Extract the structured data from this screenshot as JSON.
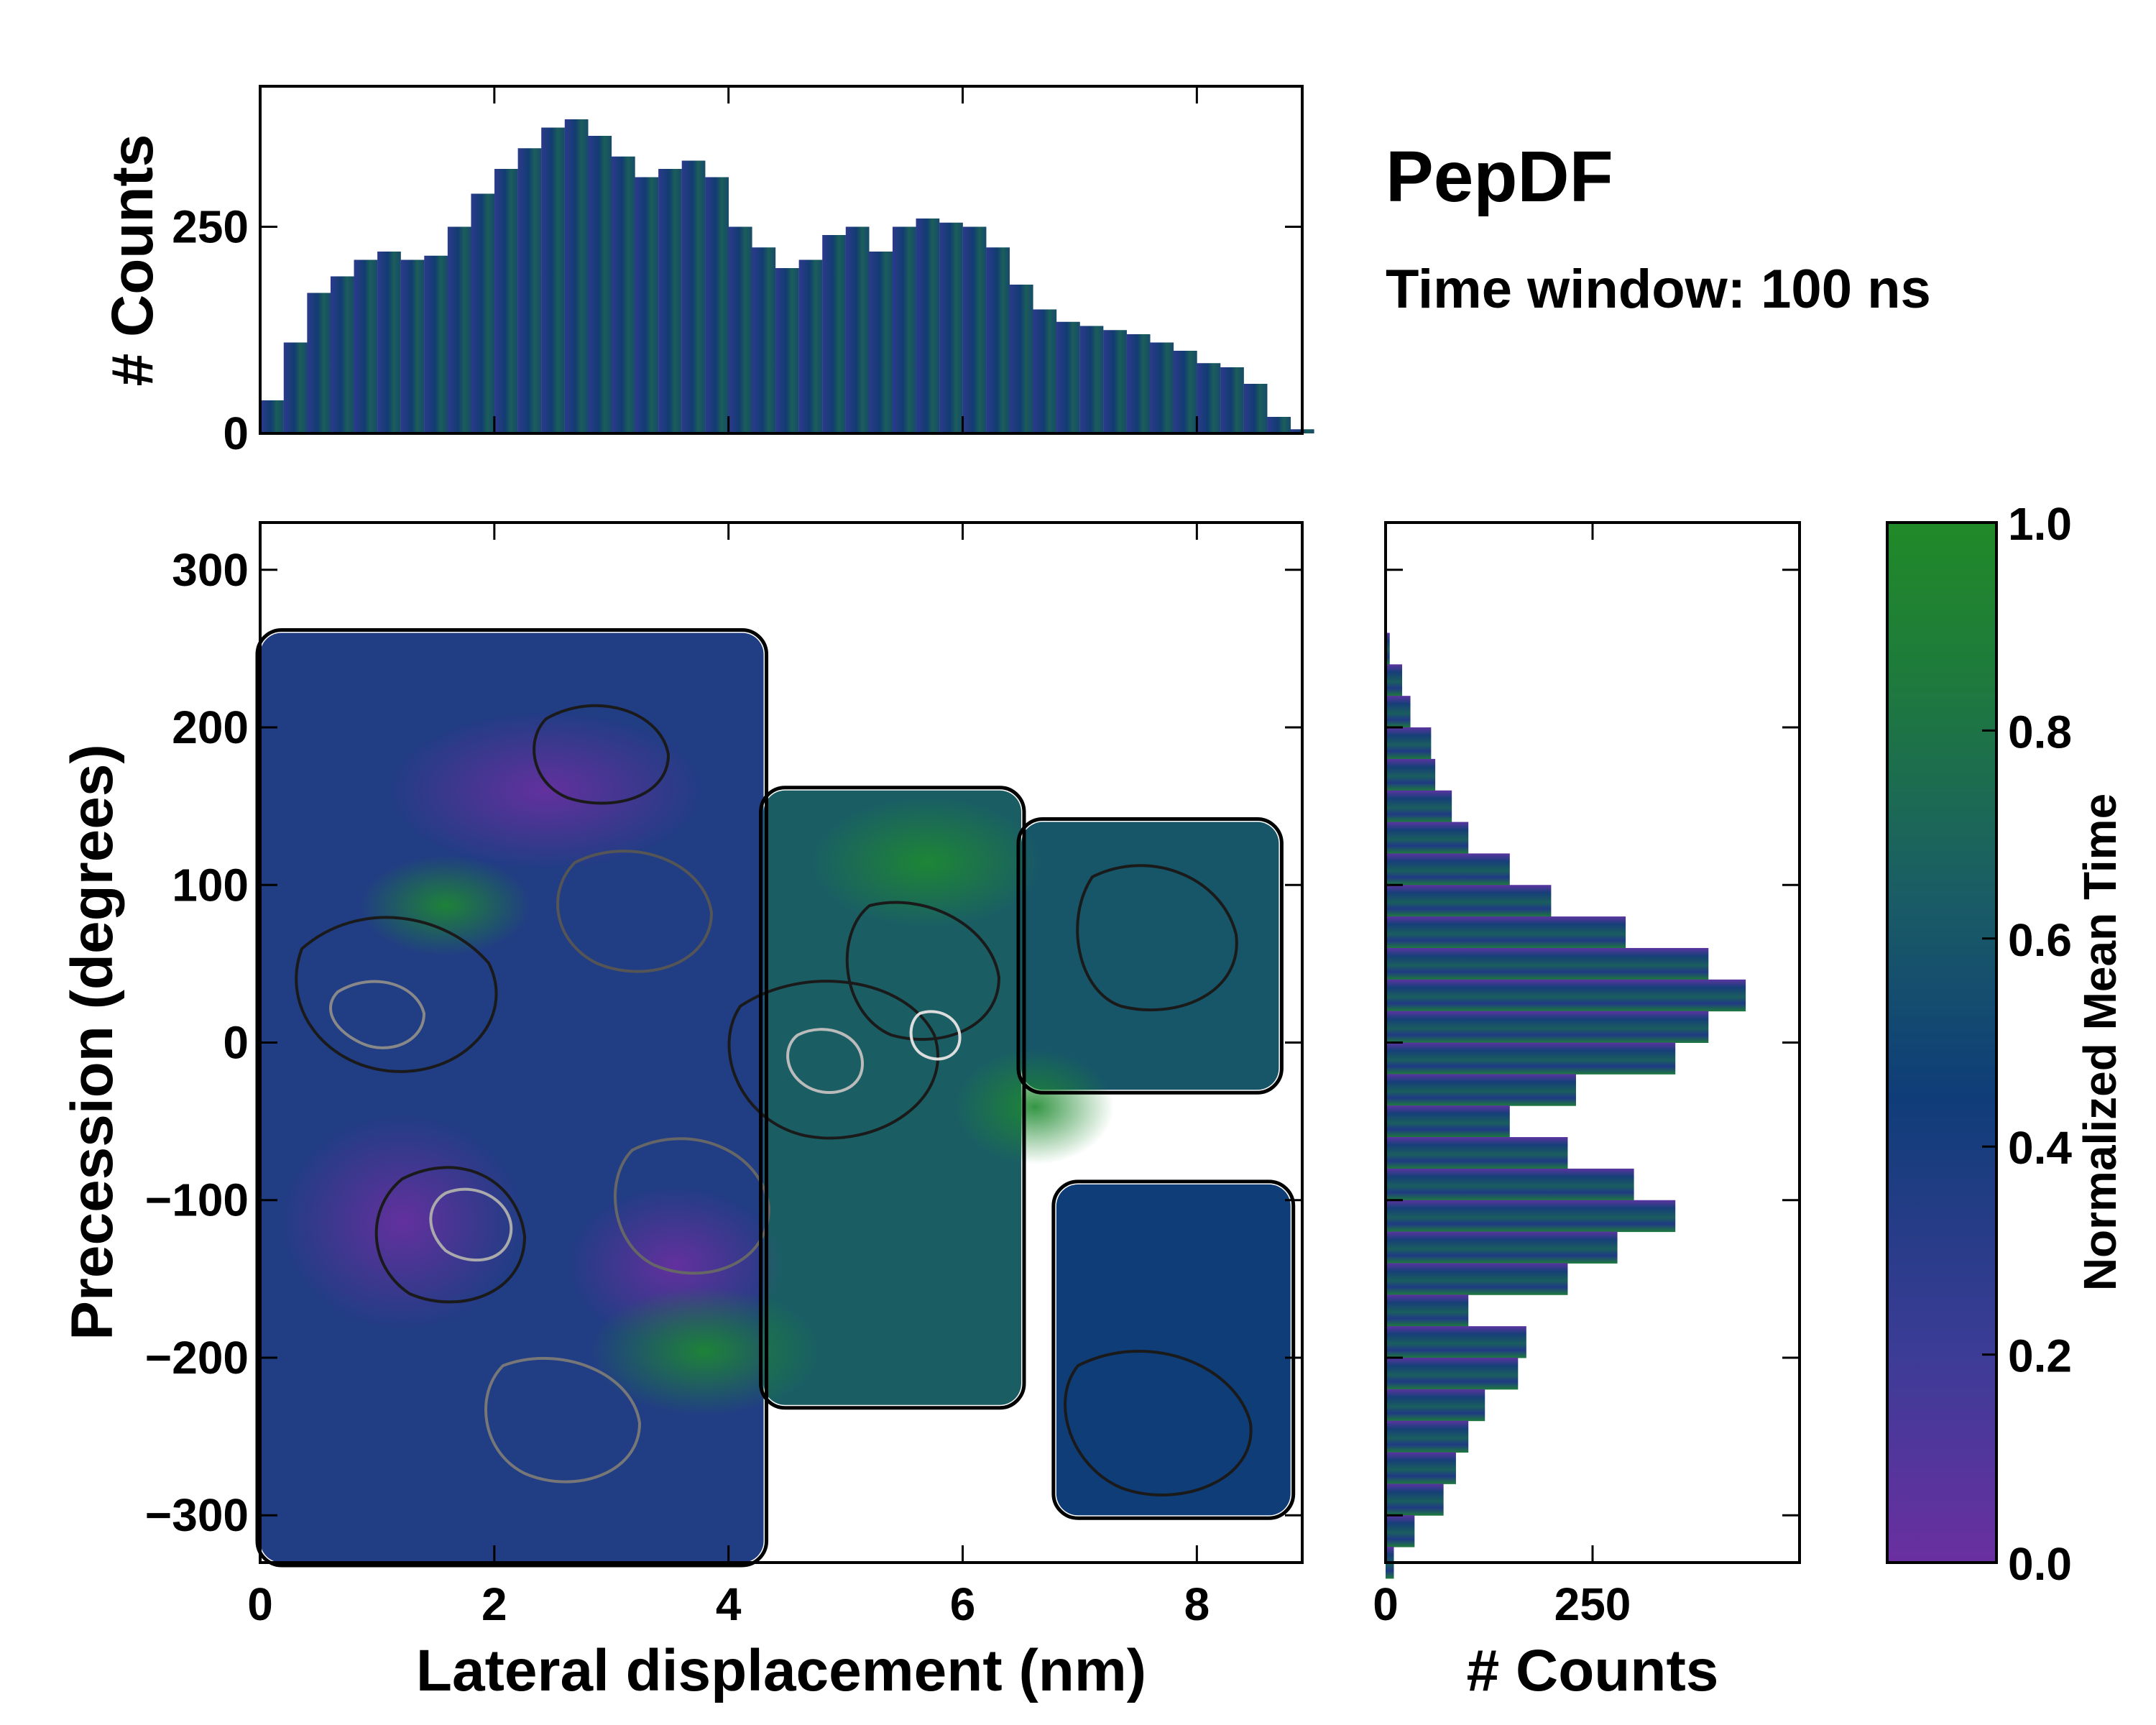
{
  "title": "PepDF",
  "subtitle": "Time window: 100 ns",
  "chart_data": [
    {
      "id": "main",
      "type": "heatmap",
      "xlabel": "Lateral displacement (nm)",
      "ylabel": "Precession (degrees)",
      "xlim": [
        0,
        8.9
      ],
      "ylim": [
        -330,
        330
      ],
      "xticks": [
        "0",
        "2",
        "4",
        "6",
        "8"
      ],
      "yticks": [
        "300",
        "200",
        "100",
        "0",
        "−100",
        "−200",
        "−300"
      ],
      "xtick_values": [
        0,
        2,
        4,
        6,
        8
      ],
      "ytick_values": [
        300,
        200,
        100,
        0,
        -100,
        -200,
        -300
      ],
      "regions": [
        {
          "name": "left-cluster",
          "x_range": [
            0,
            4.3
          ],
          "y_range": [
            -330,
            260
          ],
          "mean_time": 0.35
        },
        {
          "name": "middle-cluster",
          "x_range": [
            4.3,
            6.5
          ],
          "y_range": [
            -230,
            160
          ],
          "mean_time": 0.65
        },
        {
          "name": "upper-right-cluster",
          "x_range": [
            6.5,
            8.7
          ],
          "y_range": [
            -30,
            140
          ],
          "mean_time": 0.6
        },
        {
          "name": "lower-right-cluster",
          "x_range": [
            6.8,
            8.8
          ],
          "y_range": [
            -300,
            -90
          ],
          "mean_time": 0.45
        }
      ]
    },
    {
      "id": "top-histogram",
      "type": "bar",
      "ylabel": "# Counts",
      "yticks": [
        "0",
        "250"
      ],
      "ytick_values": [
        0,
        250
      ],
      "ylim": [
        0,
        420
      ],
      "x": [
        0.1,
        0.3,
        0.5,
        0.7,
        0.9,
        1.1,
        1.3,
        1.5,
        1.7,
        1.9,
        2.1,
        2.3,
        2.5,
        2.7,
        2.9,
        3.1,
        3.3,
        3.5,
        3.7,
        3.9,
        4.1,
        4.3,
        4.5,
        4.7,
        4.9,
        5.1,
        5.3,
        5.5,
        5.7,
        5.9,
        6.1,
        6.3,
        6.5,
        6.7,
        6.9,
        7.1,
        7.3,
        7.5,
        7.7,
        7.9,
        8.1,
        8.3,
        8.5,
        8.7,
        8.9
      ],
      "values": [
        40,
        110,
        170,
        190,
        210,
        220,
        210,
        215,
        250,
        290,
        320,
        345,
        370,
        380,
        360,
        335,
        310,
        320,
        330,
        310,
        250,
        225,
        200,
        210,
        240,
        250,
        220,
        250,
        260,
        255,
        250,
        225,
        180,
        150,
        135,
        130,
        125,
        120,
        110,
        100,
        85,
        80,
        60,
        20,
        5
      ]
    },
    {
      "id": "right-histogram",
      "type": "bar",
      "xlabel": "# Counts",
      "xticks": [
        "0",
        "250"
      ],
      "xtick_values": [
        0,
        250
      ],
      "xlim": [
        0,
        500
      ],
      "y": [
        250,
        230,
        210,
        190,
        170,
        150,
        130,
        110,
        90,
        70,
        50,
        30,
        10,
        -10,
        -30,
        -50,
        -70,
        -90,
        -110,
        -130,
        -150,
        -170,
        -190,
        -210,
        -230,
        -250,
        -270,
        -290,
        -310,
        -330
      ],
      "values": [
        5,
        20,
        30,
        55,
        60,
        80,
        100,
        150,
        200,
        290,
        390,
        435,
        390,
        350,
        230,
        150,
        220,
        300,
        350,
        280,
        220,
        100,
        170,
        160,
        120,
        100,
        85,
        70,
        35,
        10
      ]
    },
    {
      "id": "colorbar",
      "type": "colorbar",
      "label": "Normalized Mean Time",
      "ticks": [
        "0.0",
        "0.2",
        "0.4",
        "0.6",
        "0.8",
        "1.0"
      ],
      "tick_values": [
        0.0,
        0.2,
        0.4,
        0.6,
        0.8,
        1.0
      ],
      "colors": [
        "#6a2fa0",
        "#3c3c96",
        "#0f3d78",
        "#1a5e64",
        "#1e7a3c",
        "#218a28"
      ]
    }
  ]
}
